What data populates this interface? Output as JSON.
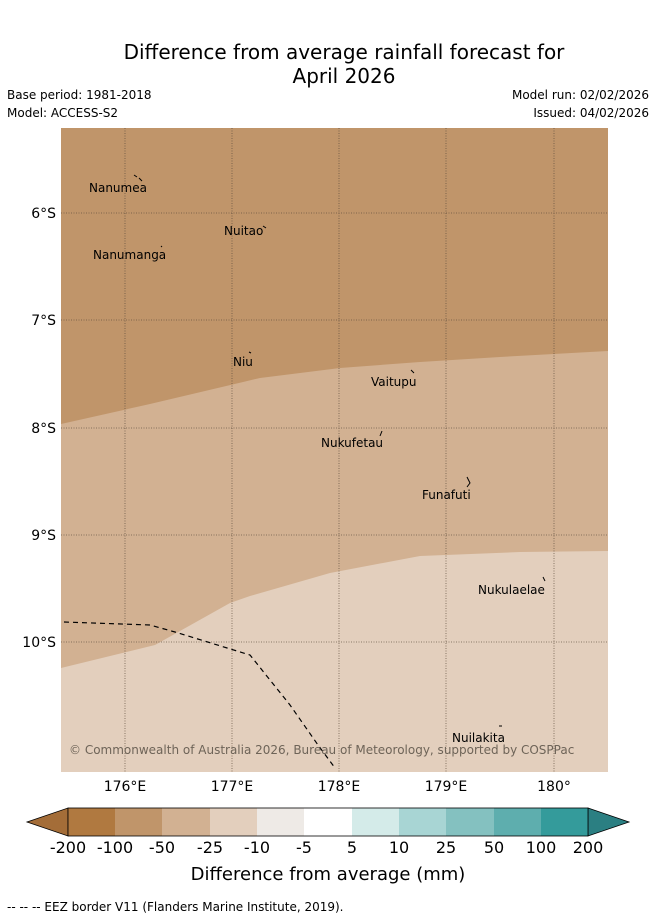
{
  "title": {
    "line1": "Difference from average rainfall forecast for",
    "line2": "April 2026"
  },
  "meta": {
    "base_period": "Base period: 1981-2018",
    "model": "Model: ACCESS-S2",
    "model_run": "Model run: 02/02/2026",
    "issued": "Issued: 04/02/2026"
  },
  "map": {
    "lat_labels": [
      "6°S",
      "7°S",
      "8°S",
      "9°S",
      "10°S"
    ],
    "lon_labels": [
      "176°E",
      "177°E",
      "178°E",
      "179°E",
      "180°"
    ],
    "places": [
      {
        "name": "Nanumea"
      },
      {
        "name": "Nuitao"
      },
      {
        "name": "Nanumanga"
      },
      {
        "name": "Niu"
      },
      {
        "name": "Vaitupu"
      },
      {
        "name": "Nukufetau"
      },
      {
        "name": "Funafuti"
      },
      {
        "name": "Nukulaelae"
      },
      {
        "name": "Nuilakita"
      }
    ],
    "regions": [
      {
        "category": "-100 to -50",
        "color": "#c0956a"
      },
      {
        "category": "-50 to -25",
        "color": "#d2b192"
      },
      {
        "category": "-25 to -10",
        "color": "#e3cfbd"
      }
    ],
    "copyright": "© Commonwealth of Australia 2026, Bureau of Meteorology, supported by COSPPac"
  },
  "colorbar": {
    "colors": [
      "#b07940",
      "#c0956a",
      "#d2b192",
      "#e3cfbd",
      "#eeeae6",
      "#ffffff",
      "#d4ebe9",
      "#a8d5d4",
      "#84c1c0",
      "#5eaeae",
      "#349b9b"
    ],
    "under_color": "#a46d38",
    "over_color": "#2b7f82",
    "tick_labels": [
      "-200",
      "-100",
      "-50",
      "-25",
      "-10",
      "-5",
      "5",
      "10",
      "25",
      "50",
      "100",
      "200"
    ],
    "title": "Difference from average (mm)"
  },
  "footer": "--  --  -- EEZ border V11 (Flanders Marine Institute, 2019)."
}
